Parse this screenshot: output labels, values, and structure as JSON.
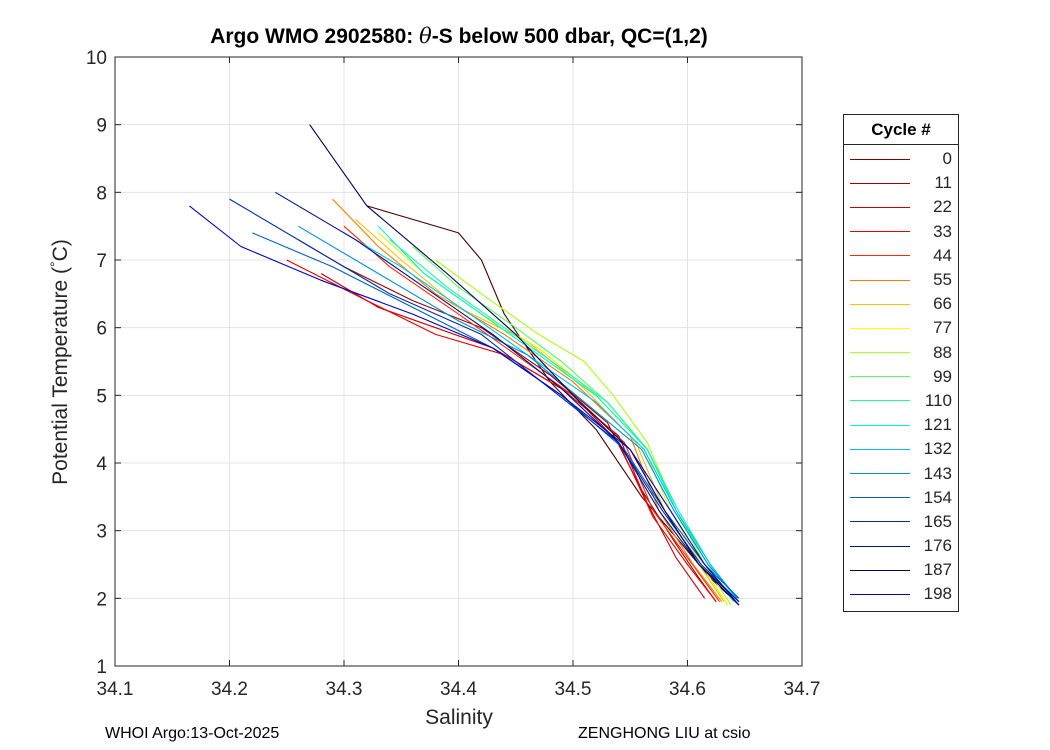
{
  "title_prefix": "Argo WMO 2902580: ",
  "title_theta": "θ",
  "title_suffix": "-S below 500 dbar,  QC=(1,2)",
  "footer_left": "WHOI Argo:13-Oct-2025",
  "footer_right": "ZENGHONG LIU at csio",
  "legend": {
    "title": "Cycle #",
    "items": [
      {
        "label": "0",
        "color": "#7f0000"
      },
      {
        "label": "11",
        "color": "#a00000"
      },
      {
        "label": "22",
        "color": "#c80000"
      },
      {
        "label": "33",
        "color": "#e80000"
      },
      {
        "label": "44",
        "color": "#ff2a00"
      },
      {
        "label": "55",
        "color": "#ff7a00"
      },
      {
        "label": "66",
        "color": "#ffbf00"
      },
      {
        "label": "77",
        "color": "#ffff00"
      },
      {
        "label": "88",
        "color": "#a8ff1a"
      },
      {
        "label": "99",
        "color": "#55ff55"
      },
      {
        "label": "110",
        "color": "#1aff9a"
      },
      {
        "label": "121",
        "color": "#00f0e0"
      },
      {
        "label": "132",
        "color": "#00c0ff"
      },
      {
        "label": "143",
        "color": "#0090d8"
      },
      {
        "label": "154",
        "color": "#0060c0"
      },
      {
        "label": "165",
        "color": "#0030a8"
      },
      {
        "label": "176",
        "color": "#00108a"
      },
      {
        "label": "187",
        "color": "#000060"
      },
      {
        "label": "198",
        "color": "#0000c8"
      }
    ]
  },
  "chart_data": {
    "type": "line",
    "title": "Argo WMO 2902580: θ-S below 500 dbar,  QC=(1,2)",
    "xlabel": "Salinity",
    "ylabel": "Potential Temperature (°C)",
    "xlim": [
      34.1,
      34.7
    ],
    "ylim": [
      1,
      10
    ],
    "xticks": [
      "34.1",
      "34.2",
      "34.3",
      "34.4",
      "34.5",
      "34.6",
      "34.7"
    ],
    "yticks": [
      "1",
      "2",
      "3",
      "4",
      "5",
      "6",
      "7",
      "8",
      "9",
      "10"
    ],
    "grid": true,
    "legend_position": "outside-right",
    "series": [
      {
        "name": "0",
        "color": "#4a0000",
        "x": [
          34.32,
          34.36,
          34.4,
          34.42,
          34.44,
          34.48,
          34.52,
          34.56,
          34.59,
          34.62,
          34.645
        ],
        "y": [
          7.8,
          7.6,
          7.4,
          7.0,
          6.2,
          5.2,
          4.5,
          3.5,
          2.9,
          2.3,
          1.9
        ]
      },
      {
        "name": "11",
        "color": "#a00000",
        "x": [
          34.26,
          34.3,
          34.36,
          34.42,
          34.48,
          34.53,
          34.56,
          34.59,
          34.61,
          34.625
        ],
        "y": [
          7.3,
          6.9,
          6.4,
          6.0,
          5.3,
          4.6,
          3.6,
          2.8,
          2.3,
          1.95
        ]
      },
      {
        "name": "22",
        "color": "#c80000",
        "x": [
          34.28,
          34.33,
          34.38,
          34.43,
          34.49,
          34.54,
          34.565,
          34.59,
          34.615
        ],
        "y": [
          6.8,
          6.3,
          6.0,
          5.7,
          5.1,
          4.4,
          3.4,
          2.6,
          2.0
        ]
      },
      {
        "name": "33",
        "color": "#e80000",
        "x": [
          34.25,
          34.32,
          34.38,
          34.44,
          34.5,
          34.54,
          34.57,
          34.6,
          34.625
        ],
        "y": [
          7.0,
          6.4,
          5.9,
          5.6,
          5.0,
          4.3,
          3.2,
          2.5,
          1.95
        ]
      },
      {
        "name": "44",
        "color": "#ff2a00",
        "x": [
          34.3,
          34.34,
          34.4,
          34.45,
          34.5,
          34.545,
          34.57,
          34.6,
          34.628
        ],
        "y": [
          7.5,
          6.9,
          6.2,
          5.6,
          5.0,
          4.3,
          3.3,
          2.6,
          1.95
        ]
      },
      {
        "name": "55",
        "color": "#ff7a00",
        "x": [
          34.29,
          34.33,
          34.38,
          34.44,
          34.5,
          34.55,
          34.575,
          34.605,
          34.63
        ],
        "y": [
          7.9,
          7.2,
          6.5,
          5.9,
          5.2,
          4.4,
          3.3,
          2.5,
          1.95
        ]
      },
      {
        "name": "66",
        "color": "#ffbf00",
        "x": [
          34.31,
          34.35,
          34.4,
          34.46,
          34.51,
          34.555,
          34.58,
          34.61,
          34.632
        ],
        "y": [
          7.6,
          7.0,
          6.3,
          5.8,
          5.1,
          4.3,
          3.3,
          2.5,
          1.95
        ]
      },
      {
        "name": "77",
        "color": "#f0f000",
        "x": [
          34.33,
          34.37,
          34.42,
          34.47,
          34.52,
          34.56,
          34.585,
          34.612,
          34.635
        ],
        "y": [
          7.4,
          6.8,
          6.2,
          5.7,
          5.0,
          4.3,
          3.3,
          2.5,
          1.9
        ]
      },
      {
        "name": "88",
        "color": "#a8ff1a",
        "x": [
          34.38,
          34.42,
          34.47,
          34.51,
          34.535,
          34.565,
          34.59,
          34.615,
          34.638
        ],
        "y": [
          7.0,
          6.5,
          5.9,
          5.5,
          5.0,
          4.3,
          3.3,
          2.5,
          1.9
        ]
      },
      {
        "name": "99",
        "color": "#55ff55",
        "x": [
          34.36,
          34.4,
          34.45,
          34.49,
          34.53,
          34.565,
          34.59,
          34.618,
          34.64
        ],
        "y": [
          7.2,
          6.6,
          6.0,
          5.5,
          4.9,
          4.2,
          3.3,
          2.5,
          1.95
        ]
      },
      {
        "name": "110",
        "color": "#1aff9a",
        "x": [
          34.34,
          34.39,
          34.44,
          34.49,
          34.53,
          34.565,
          34.59,
          34.62,
          34.642
        ],
        "y": [
          7.3,
          6.6,
          6.0,
          5.4,
          4.9,
          4.2,
          3.3,
          2.5,
          2.0
        ]
      },
      {
        "name": "121",
        "color": "#00f0e0",
        "x": [
          34.33,
          34.37,
          34.42,
          34.47,
          34.52,
          34.565,
          34.592,
          34.62,
          34.643
        ],
        "y": [
          7.5,
          6.8,
          6.2,
          5.6,
          5.0,
          4.2,
          3.3,
          2.5,
          2.0
        ]
      },
      {
        "name": "132",
        "color": "#00c0ff",
        "x": [
          34.3,
          34.35,
          34.41,
          34.46,
          34.52,
          34.562,
          34.59,
          34.62,
          34.643
        ],
        "y": [
          7.4,
          6.9,
          6.2,
          5.6,
          4.9,
          4.2,
          3.3,
          2.5,
          2.0
        ]
      },
      {
        "name": "143",
        "color": "#0090d8",
        "x": [
          34.26,
          34.33,
          34.4,
          34.46,
          34.51,
          34.56,
          34.588,
          34.618,
          34.644
        ],
        "y": [
          7.5,
          6.8,
          6.1,
          5.6,
          4.9,
          4.2,
          3.3,
          2.5,
          2.0
        ]
      },
      {
        "name": "154",
        "color": "#0060c0",
        "x": [
          34.22,
          34.29,
          34.36,
          34.43,
          34.49,
          34.545,
          34.58,
          34.615,
          34.645
        ],
        "y": [
          7.4,
          6.9,
          6.3,
          5.7,
          5.0,
          4.2,
          3.3,
          2.5,
          2.0
        ]
      },
      {
        "name": "165",
        "color": "#0030a8",
        "x": [
          34.2,
          34.27,
          34.34,
          34.42,
          34.48,
          34.54,
          34.578,
          34.612,
          34.645
        ],
        "y": [
          7.9,
          7.2,
          6.5,
          5.9,
          5.1,
          4.3,
          3.3,
          2.5,
          1.95
        ]
      },
      {
        "name": "176",
        "color": "#00108a",
        "x": [
          34.24,
          34.31,
          34.37,
          34.43,
          34.49,
          34.54,
          34.575,
          34.61,
          34.645
        ],
        "y": [
          8.0,
          7.3,
          6.6,
          5.9,
          5.1,
          4.3,
          3.3,
          2.5,
          1.95
        ]
      },
      {
        "name": "187",
        "color": "#000060",
        "x": [
          34.27,
          34.32,
          34.39,
          34.45,
          34.5,
          34.55,
          34.58,
          34.61,
          34.645
        ],
        "y": [
          9.0,
          7.8,
          6.8,
          5.9,
          5.0,
          4.2,
          3.3,
          2.5,
          1.9
        ]
      },
      {
        "name": "198",
        "color": "#0000c8",
        "x": [
          34.165,
          34.21,
          34.28,
          34.36,
          34.43,
          34.49,
          34.55,
          34.585,
          34.615,
          34.645
        ],
        "y": [
          7.8,
          7.2,
          6.7,
          6.2,
          5.7,
          5.0,
          4.2,
          3.3,
          2.5,
          1.9
        ]
      }
    ]
  }
}
